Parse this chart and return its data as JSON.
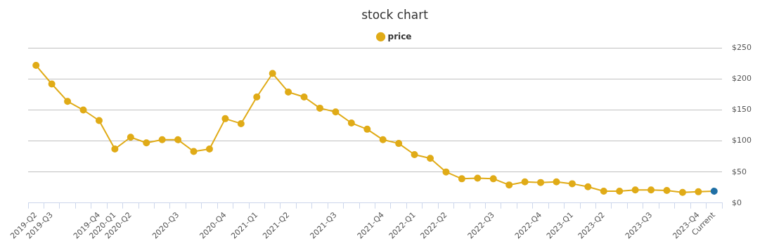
{
  "chart_data": {
    "type": "line",
    "title": "stock chart",
    "categories": [
      "2019-Q2",
      "2019-Q3",
      null,
      null,
      "2019-Q4",
      "2020-Q1",
      "2020-Q2",
      null,
      null,
      "2020-Q3",
      null,
      null,
      "2020-Q4",
      null,
      "2021-Q1",
      null,
      "2021-Q2",
      null,
      null,
      "2021-Q3",
      null,
      null,
      "2021-Q4",
      null,
      "2022-Q1",
      null,
      "2022-Q2",
      null,
      null,
      "2022-Q3",
      null,
      null,
      "2022-Q4",
      null,
      "2023-Q1",
      null,
      "2023-Q2",
      null,
      null,
      "2023-Q3",
      null,
      null,
      "2023-Q4",
      "Current"
    ],
    "series": [
      {
        "name": "price",
        "color": "#e0ab17",
        "colors": [
          "#e0ab17",
          "#e0ab17",
          "#e0ab17",
          "#e0ab17",
          "#e0ab17",
          "#e0ab17",
          "#e0ab17",
          "#e0ab17",
          "#e0ab17",
          "#e0ab17",
          "#e0ab17",
          "#e0ab17",
          "#e0ab17",
          "#e0ab17",
          "#e0ab17",
          "#e0ab17",
          "#e0ab17",
          "#e0ab17",
          "#e0ab17",
          "#e0ab17",
          "#e0ab17",
          "#e0ab17",
          "#e0ab17",
          "#e0ab17",
          "#e0ab17",
          "#e0ab17",
          "#e0ab17",
          "#e0ab17",
          "#e0ab17",
          "#e0ab17",
          "#e0ab17",
          "#e0ab17",
          "#e0ab17",
          "#e0ab17",
          "#e0ab17",
          "#e0ab17",
          "#e0ab17",
          "#e0ab17",
          "#e0ab17",
          "#e0ab17",
          "#e0ab17",
          "#e0ab17",
          "#e0ab17",
          "#1f6fa5"
        ],
        "values": [
          222,
          192,
          164,
          150,
          133,
          87,
          106,
          97,
          102,
          102,
          83,
          87,
          136,
          128,
          171,
          209,
          179,
          171,
          153,
          147,
          129,
          119,
          102,
          96,
          78,
          72,
          50,
          39,
          40,
          39,
          29,
          34,
          33,
          34,
          31,
          26,
          19,
          19,
          21,
          21,
          20,
          17,
          18,
          19
        ]
      }
    ],
    "ylim": [
      0,
      250
    ],
    "yticks": [
      {
        "value": 0,
        "label": "$0"
      },
      {
        "value": 50,
        "label": "$50"
      },
      {
        "value": 100,
        "label": "$100"
      },
      {
        "value": 150,
        "label": "$150"
      },
      {
        "value": 200,
        "label": "$200"
      },
      {
        "value": 250,
        "label": "$250"
      }
    ],
    "grid": "y",
    "legend": "top",
    "marker": "circle",
    "line_style": "solid"
  }
}
